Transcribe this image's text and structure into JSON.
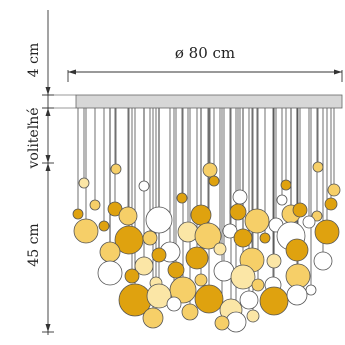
{
  "labels": {
    "diameter": "ø 80 cm",
    "top_height": "4 cm",
    "optional": "voliteľné",
    "bottom_height": "45 cm"
  },
  "colors": {
    "dark_gold": "#dfa20f",
    "light_gold": "#f6cf68",
    "cream": "#fbe6a6",
    "white": "#ffffff",
    "plate": "#d7d7d7",
    "dim_line": "#333333"
  },
  "bubble_types": [
    "dark-gold",
    "light-gold",
    "cream",
    "white"
  ]
}
